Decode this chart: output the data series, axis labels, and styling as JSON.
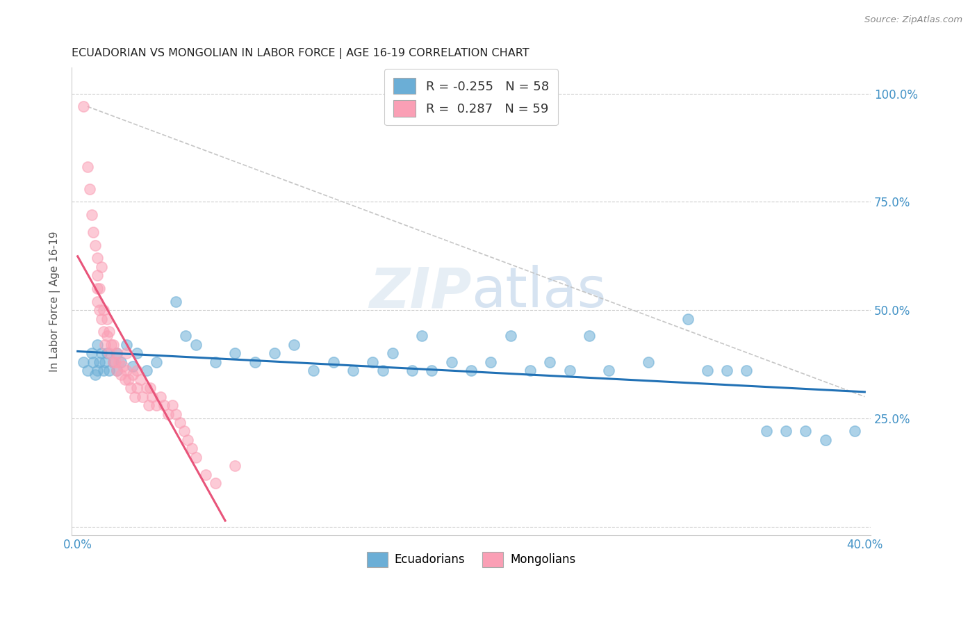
{
  "title": "ECUADORIAN VS MONGOLIAN IN LABOR FORCE | AGE 16-19 CORRELATION CHART",
  "source": "Source: ZipAtlas.com",
  "ylabel": "In Labor Force | Age 16-19",
  "watermark": "ZIPatlas",
  "blue_color": "#6baed6",
  "pink_color": "#fa9fb5",
  "blue_line_color": "#2171b5",
  "pink_line_color": "#e8547a",
  "diagonal_color": "#cccccc",
  "xlim": [
    0.0,
    0.4
  ],
  "ylim": [
    0.0,
    1.05
  ],
  "xtick_vals": [
    0.0,
    0.05,
    0.1,
    0.15,
    0.2,
    0.25,
    0.3,
    0.35,
    0.4
  ],
  "ytick_vals": [
    0.0,
    0.25,
    0.5,
    0.75,
    1.0
  ],
  "ytick_labels": [
    "",
    "25.0%",
    "50.0%",
    "75.0%",
    "100.0%"
  ],
  "ecu_x": [
    0.003,
    0.005,
    0.007,
    0.008,
    0.009,
    0.01,
    0.01,
    0.011,
    0.012,
    0.013,
    0.014,
    0.015,
    0.016,
    0.018,
    0.02,
    0.02,
    0.022,
    0.025,
    0.028,
    0.03,
    0.035,
    0.04,
    0.05,
    0.055,
    0.06,
    0.07,
    0.08,
    0.09,
    0.1,
    0.11,
    0.12,
    0.13,
    0.14,
    0.15,
    0.155,
    0.16,
    0.17,
    0.175,
    0.18,
    0.19,
    0.2,
    0.21,
    0.22,
    0.23,
    0.24,
    0.25,
    0.26,
    0.27,
    0.29,
    0.31,
    0.32,
    0.33,
    0.34,
    0.35,
    0.36,
    0.37,
    0.38,
    0.395
  ],
  "ecu_y": [
    0.38,
    0.36,
    0.4,
    0.38,
    0.35,
    0.36,
    0.42,
    0.38,
    0.4,
    0.36,
    0.38,
    0.4,
    0.36,
    0.38,
    0.36,
    0.4,
    0.38,
    0.42,
    0.37,
    0.4,
    0.36,
    0.38,
    0.52,
    0.44,
    0.42,
    0.38,
    0.4,
    0.38,
    0.4,
    0.42,
    0.36,
    0.38,
    0.36,
    0.38,
    0.36,
    0.4,
    0.36,
    0.44,
    0.36,
    0.38,
    0.36,
    0.38,
    0.44,
    0.36,
    0.38,
    0.36,
    0.44,
    0.36,
    0.38,
    0.48,
    0.36,
    0.36,
    0.36,
    0.22,
    0.22,
    0.22,
    0.2,
    0.22
  ],
  "mon_x": [
    0.003,
    0.005,
    0.006,
    0.007,
    0.008,
    0.009,
    0.01,
    0.01,
    0.01,
    0.01,
    0.011,
    0.011,
    0.012,
    0.012,
    0.013,
    0.013,
    0.014,
    0.015,
    0.015,
    0.016,
    0.016,
    0.017,
    0.018,
    0.018,
    0.019,
    0.02,
    0.02,
    0.021,
    0.022,
    0.023,
    0.024,
    0.025,
    0.025,
    0.026,
    0.027,
    0.028,
    0.029,
    0.03,
    0.03,
    0.032,
    0.033,
    0.035,
    0.036,
    0.037,
    0.038,
    0.04,
    0.042,
    0.044,
    0.046,
    0.048,
    0.05,
    0.052,
    0.054,
    0.056,
    0.058,
    0.06,
    0.065,
    0.07,
    0.08
  ],
  "mon_y": [
    0.97,
    0.83,
    0.78,
    0.72,
    0.68,
    0.65,
    0.62,
    0.58,
    0.55,
    0.52,
    0.5,
    0.55,
    0.48,
    0.6,
    0.45,
    0.5,
    0.42,
    0.48,
    0.44,
    0.4,
    0.45,
    0.42,
    0.38,
    0.42,
    0.38,
    0.36,
    0.4,
    0.38,
    0.35,
    0.37,
    0.34,
    0.36,
    0.4,
    0.34,
    0.32,
    0.35,
    0.3,
    0.36,
    0.32,
    0.34,
    0.3,
    0.32,
    0.28,
    0.32,
    0.3,
    0.28,
    0.3,
    0.28,
    0.26,
    0.28,
    0.26,
    0.24,
    0.22,
    0.2,
    0.18,
    0.16,
    0.12,
    0.1,
    0.14
  ]
}
